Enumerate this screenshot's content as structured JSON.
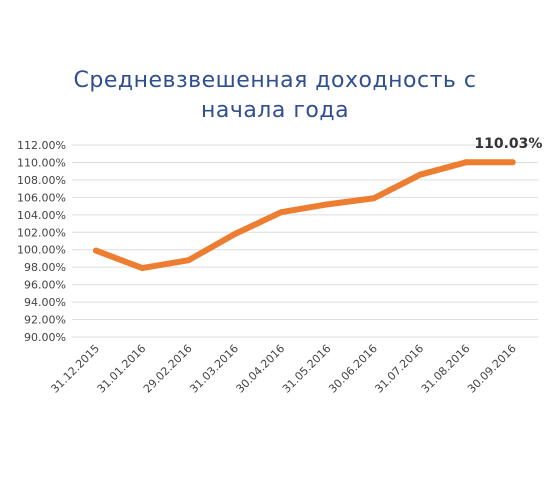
{
  "chart_data": {
    "type": "line",
    "title_lines": [
      "Средневзвешенная доходность с",
      "начала года"
    ],
    "xlabel": "",
    "ylabel": "",
    "categories": [
      "31.12.2015",
      "31.01.2016",
      "29.02.2016",
      "31.03.2016",
      "30.04.2016",
      "31.05.2016",
      "30.06.2016",
      "31.07.2016",
      "31.08.2016",
      "30.09.2016"
    ],
    "values": [
      99.9,
      97.9,
      98.8,
      101.8,
      104.3,
      105.2,
      105.9,
      108.6,
      110.03,
      110.03
    ],
    "y_ticks": [
      "90.00%",
      "92.00%",
      "94.00%",
      "96.00%",
      "98.00%",
      "100.00%",
      "102.00%",
      "104.00%",
      "106.00%",
      "108.00%",
      "110.00%",
      "112.00%"
    ],
    "ylim": [
      90,
      112
    ],
    "grid": true,
    "line_color": "#ed7d31",
    "annotation": {
      "category": "31.08.2016",
      "text": "110.03%"
    }
  }
}
